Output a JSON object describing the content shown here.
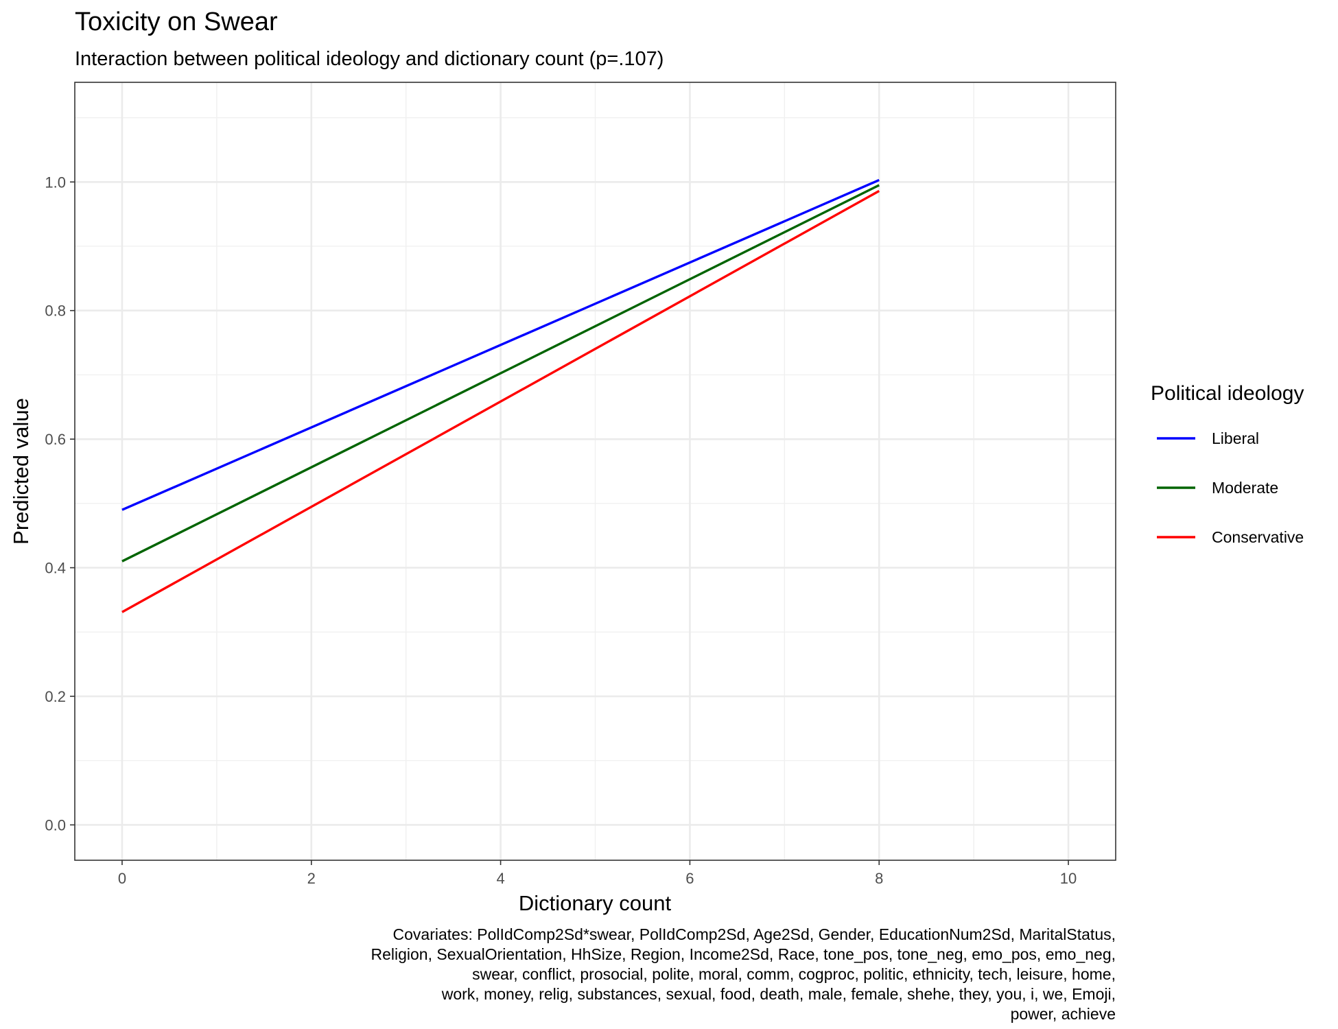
{
  "chart_data": {
    "type": "line",
    "title": "Toxicity on Swear",
    "subtitle": "Interaction between political ideology and dictionary count (p=.107)",
    "xlabel": "Dictionary count",
    "ylabel": "Predicted value",
    "xlim": [
      -0.5,
      10.5
    ],
    "ylim": [
      -0.055,
      1.155
    ],
    "x_ticks": [
      0,
      2,
      4,
      6,
      8,
      10
    ],
    "x_tick_labels": [
      "0",
      "2",
      "4",
      "6",
      "8",
      "10"
    ],
    "y_ticks": [
      0.0,
      0.2,
      0.4,
      0.6,
      0.8,
      1.0
    ],
    "y_tick_labels": [
      "0.0",
      "0.2",
      "0.4",
      "0.6",
      "0.8",
      "1.0"
    ],
    "grid": true,
    "legend_title": "Political ideology",
    "legend_position": "right",
    "series": [
      {
        "name": "Liberal",
        "color": "#0000ff",
        "x": [
          0,
          8
        ],
        "values": [
          0.49,
          1.003
        ]
      },
      {
        "name": "Moderate",
        "color": "#006400",
        "x": [
          0,
          8
        ],
        "values": [
          0.41,
          0.995
        ]
      },
      {
        "name": "Conservative",
        "color": "#ff0000",
        "x": [
          0,
          8
        ],
        "values": [
          0.331,
          0.986
        ]
      }
    ],
    "caption_lines": [
      "Covariates: PolIdComp2Sd*swear, PolIdComp2Sd, Age2Sd, Gender, EducationNum2Sd, MaritalStatus,",
      "Religion, SexualOrientation, HhSize, Region, Income2Sd, Race, tone_pos, tone_neg, emo_pos, emo_neg,",
      "swear, conflict, prosocial, polite, moral, comm, cogproc, politic, ethnicity, tech, leisure, home,",
      "work, money, relig, substances, sexual, food, death, male, female, shehe, they, you, i, we, Emoji,",
      "power, achieve"
    ]
  }
}
